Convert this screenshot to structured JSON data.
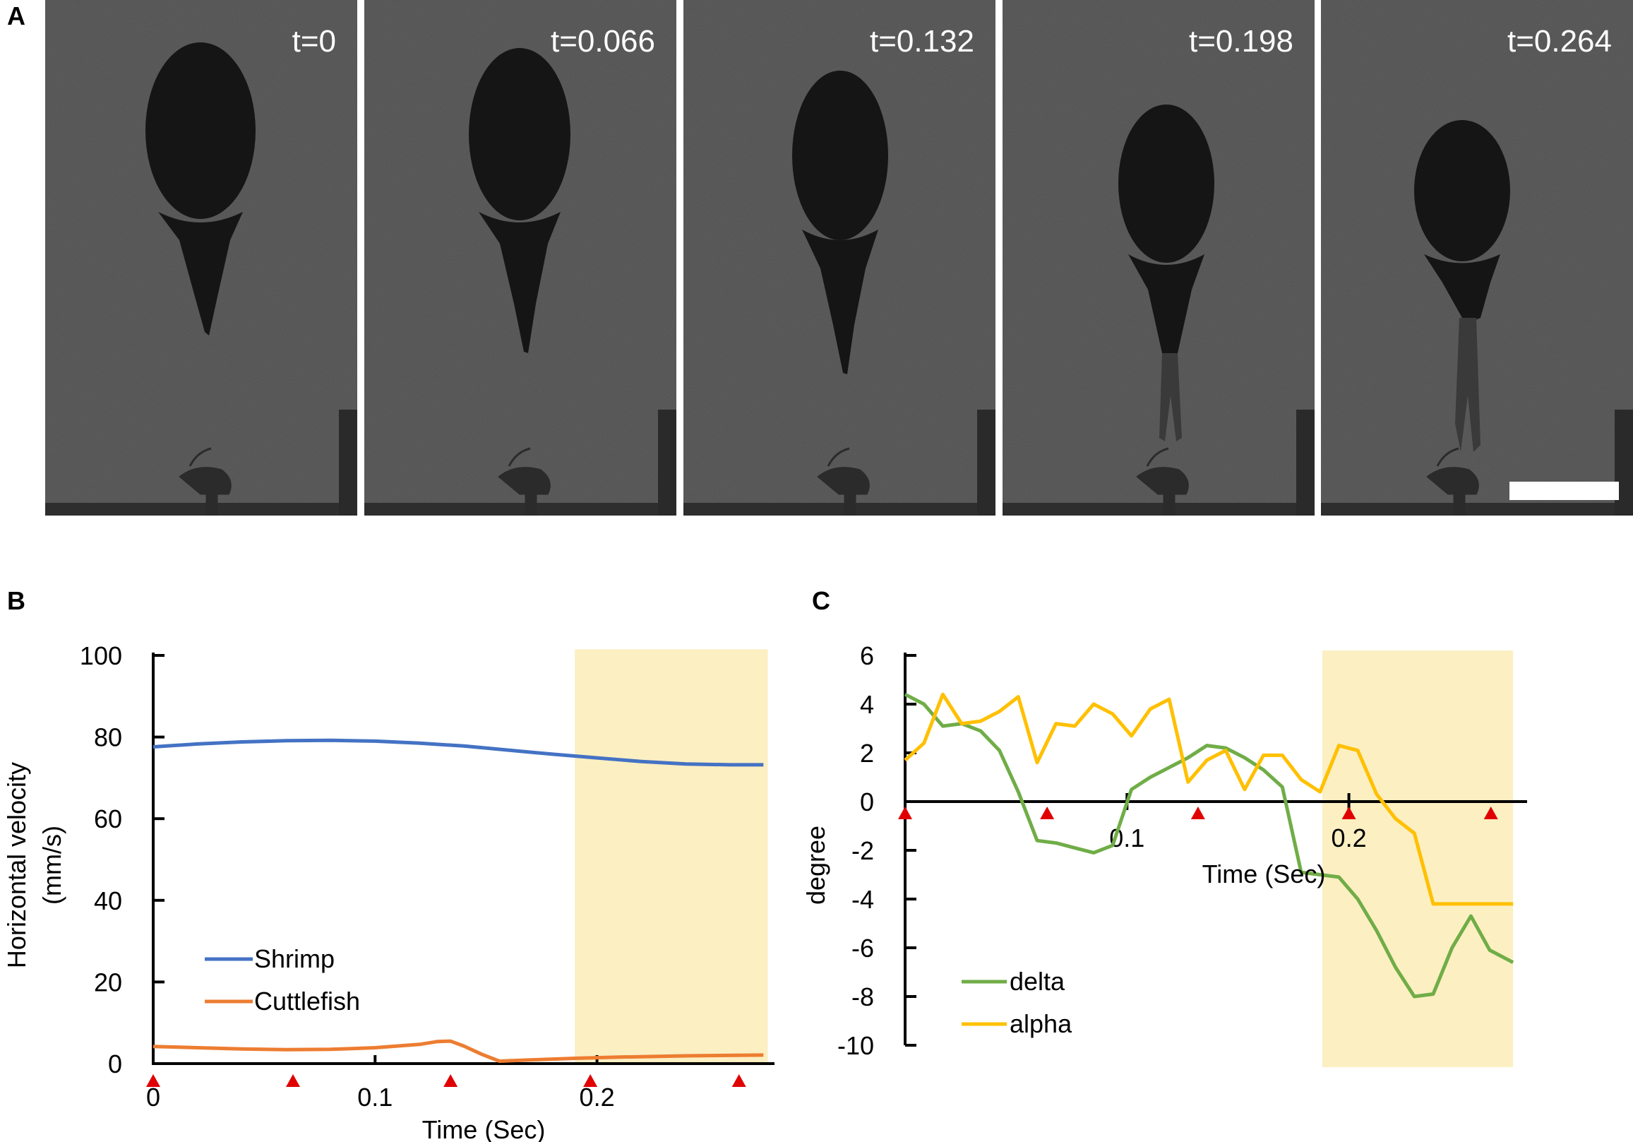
{
  "figure": {
    "panels": [
      "A",
      "B",
      "C"
    ],
    "frames": [
      "t=0",
      "t=0.066",
      "t=0.132",
      "t=0.198",
      "t=0.264"
    ]
  },
  "colors": {
    "shrimp": "#4472C4",
    "cuttlefish": "#ED7D31",
    "delta": "#70AD47",
    "alpha": "#FFC000",
    "highlight": "#FCEFC2",
    "marker": "#E00000"
  },
  "chart_data": [
    {
      "id": "B",
      "type": "line",
      "xlabel": "Time (Sec)",
      "ylabel_line1": "Horizontal velocity",
      "ylabel_line2": "(mm/s)",
      "xlim": [
        0,
        0.28
      ],
      "ylim": [
        0,
        100
      ],
      "xticks": [
        0,
        0.1,
        0.2
      ],
      "xtick_labels": [
        "0",
        "0.1",
        "0.2"
      ],
      "yticks": [
        0,
        20,
        40,
        60,
        80,
        100
      ],
      "ytick_labels": [
        "0",
        "20",
        "40",
        "60",
        "80",
        "100"
      ],
      "highlight_x": [
        0.19,
        0.277
      ],
      "markers_x": [
        0,
        0.063,
        0.134,
        0.197,
        0.264
      ],
      "series": [
        {
          "name": "Shrimp",
          "color_key": "shrimp",
          "x": [
            0,
            0.02,
            0.04,
            0.06,
            0.08,
            0.1,
            0.12,
            0.14,
            0.16,
            0.18,
            0.2,
            0.22,
            0.24,
            0.26,
            0.275
          ],
          "y": [
            77.6,
            78.3,
            78.8,
            79.1,
            79.2,
            79.0,
            78.5,
            77.8,
            76.8,
            75.8,
            74.9,
            74.0,
            73.4,
            73.2,
            73.2
          ]
        },
        {
          "name": "Cuttlefish",
          "color_key": "cuttlefish",
          "x": [
            0,
            0.02,
            0.04,
            0.06,
            0.08,
            0.1,
            0.12,
            0.128,
            0.134,
            0.14,
            0.148,
            0.156,
            0.17,
            0.19,
            0.21,
            0.24,
            0.275
          ],
          "y": [
            4.2,
            3.9,
            3.6,
            3.4,
            3.5,
            3.9,
            4.7,
            5.4,
            5.5,
            4.3,
            2.3,
            0.6,
            0.9,
            1.3,
            1.6,
            1.9,
            2.1
          ]
        }
      ]
    },
    {
      "id": "C",
      "type": "line",
      "xlabel": "Time (Sec)",
      "ylabel": "degree",
      "xlim": [
        0,
        0.28
      ],
      "ylim": [
        -10,
        6
      ],
      "xticks": [
        0.1,
        0.2
      ],
      "xtick_labels": [
        "0.1",
        "0.2"
      ],
      "yticks": [
        -10,
        -8,
        -6,
        -4,
        -2,
        0,
        2,
        4,
        6
      ],
      "ytick_labels": [
        "-10",
        "-8",
        "-6",
        "-4",
        "-2",
        "0",
        "2",
        "4",
        "6"
      ],
      "highlight_x": [
        0.188,
        0.274
      ],
      "highlight_y": [
        -10.9,
        6.2
      ],
      "markers_x": [
        0,
        0.064,
        0.132,
        0.2,
        0.264
      ],
      "series": [
        {
          "name": "delta",
          "color_key": "delta",
          "x": [
            0,
            0.0085,
            0.017,
            0.0255,
            0.034,
            0.0425,
            0.051,
            0.0595,
            0.068,
            0.0765,
            0.085,
            0.0935,
            0.102,
            0.1105,
            0.119,
            0.1275,
            0.136,
            0.1445,
            0.153,
            0.1615,
            0.17,
            0.1785,
            0.187,
            0.1955,
            0.204,
            0.2125,
            0.221,
            0.2295,
            0.238,
            0.2465,
            0.255,
            0.2635,
            0.274
          ],
          "y": [
            4.4,
            4.0,
            3.1,
            3.2,
            2.9,
            2.1,
            0.4,
            -1.6,
            -1.7,
            -1.9,
            -2.1,
            -1.8,
            0.5,
            1.0,
            1.4,
            1.8,
            2.3,
            2.2,
            1.8,
            1.3,
            0.6,
            -2.9,
            -3.0,
            -3.1,
            -4.0,
            -5.3,
            -6.8,
            -8.0,
            -7.9,
            -6.0,
            -4.7,
            -6.1,
            -6.6
          ]
        },
        {
          "name": "alpha",
          "color_key": "alpha",
          "x": [
            0,
            0.0085,
            0.017,
            0.0255,
            0.034,
            0.0425,
            0.051,
            0.0595,
            0.068,
            0.0765,
            0.085,
            0.0935,
            0.102,
            0.1105,
            0.119,
            0.1275,
            0.136,
            0.1445,
            0.153,
            0.1615,
            0.17,
            0.1785,
            0.187,
            0.1955,
            0.204,
            0.2125,
            0.221,
            0.2295,
            0.238,
            0.2465,
            0.255,
            0.2635,
            0.274
          ],
          "y": [
            1.7,
            2.4,
            4.4,
            3.2,
            3.3,
            3.7,
            4.3,
            1.6,
            3.2,
            3.1,
            4.0,
            3.6,
            2.7,
            3.8,
            4.2,
            0.8,
            1.7,
            2.1,
            0.5,
            1.9,
            1.9,
            0.9,
            0.4,
            2.3,
            2.1,
            0.3,
            -0.7,
            -1.3,
            -4.2,
            -4.2,
            -4.2,
            -4.2,
            -4.2
          ]
        }
      ]
    }
  ]
}
